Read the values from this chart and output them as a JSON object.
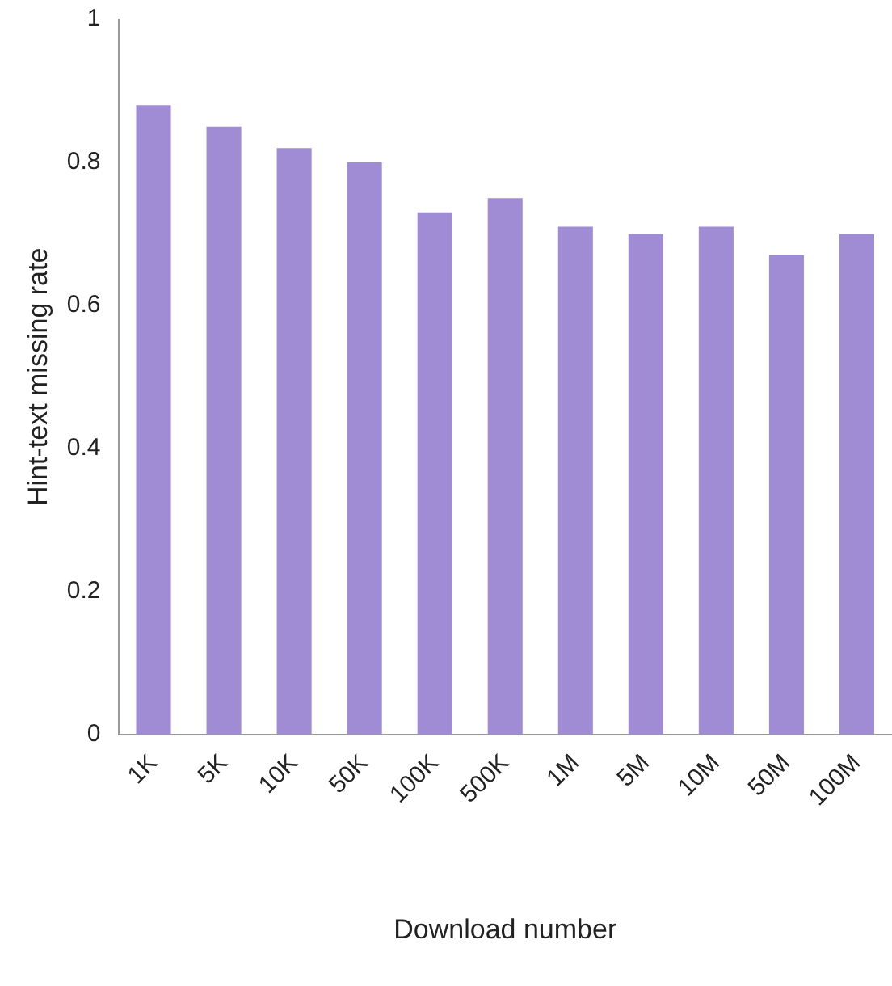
{
  "chart_data": {
    "type": "bar",
    "xlabel": "Download number",
    "ylabel": "Hint-text missing rate",
    "categories": [
      "1K",
      "5K",
      "10K",
      "50K",
      "100K",
      "500K",
      "1M",
      "5M",
      "10M",
      "50M",
      "100M"
    ],
    "values": [
      0.88,
      0.85,
      0.82,
      0.8,
      0.73,
      0.75,
      0.71,
      0.7,
      0.71,
      0.67,
      0.7
    ],
    "color": "#a08cd4",
    "ylim": [
      0,
      1
    ],
    "yticks": [
      0,
      0.2,
      0.4,
      0.6,
      0.8,
      1
    ],
    "grid": false,
    "legend": false
  }
}
